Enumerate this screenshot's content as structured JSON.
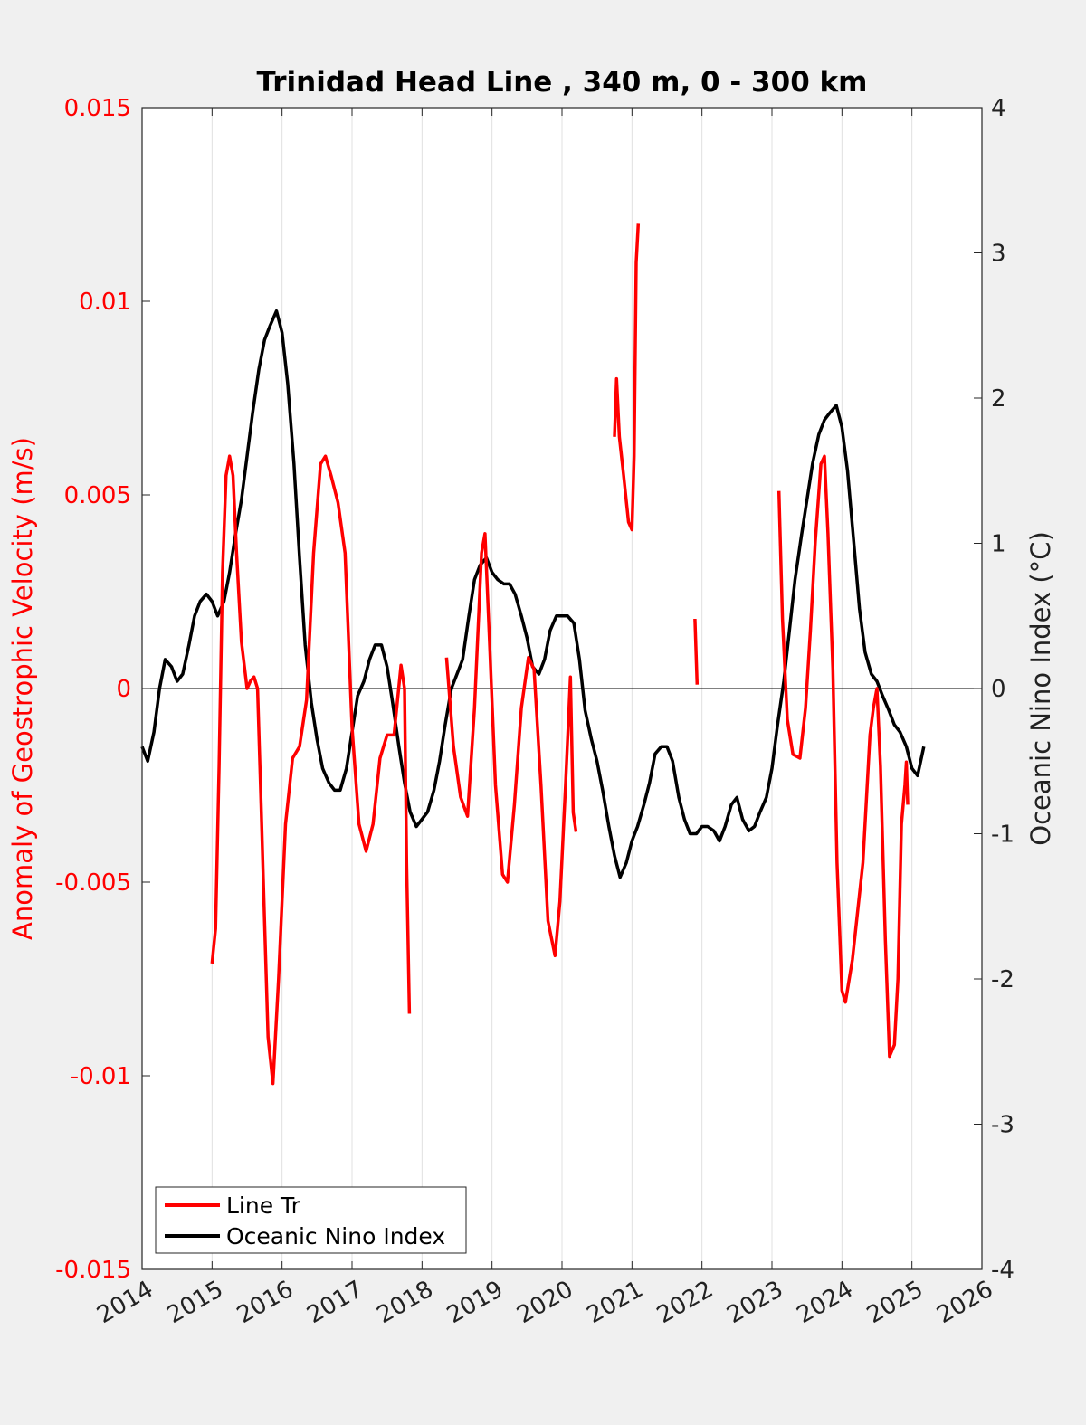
{
  "colors": {
    "red_series": "#ff0000",
    "black_series": "#000000",
    "background": "#f0f0f0",
    "plot_bg": "#ffffff",
    "grid": "#e0e0e0"
  },
  "chart_data": {
    "type": "line",
    "title": "Trinidad Head Line , 340 m, 0 - 300 km",
    "xlabel": "",
    "ylabel_left": "Anomaly of Geostrophic Velocity (m/s)",
    "ylabel_right": "Oceanic Nino Index (°C)",
    "xlim": [
      2014,
      2026
    ],
    "ylim_left": [
      -0.015,
      0.015
    ],
    "ylim_right": [
      -4,
      4
    ],
    "x_ticks": [
      "2014",
      "2015",
      "2016",
      "2017",
      "2018",
      "2019",
      "2020",
      "2021",
      "2022",
      "2023",
      "2024",
      "2025",
      "2026"
    ],
    "y_ticks_left": [
      "0.015",
      "0.01",
      "0.005",
      "0",
      "-0.005",
      "-0.01",
      "-0.015"
    ],
    "y_ticks_right": [
      "4",
      "3",
      "2",
      "1",
      "0",
      "-1",
      "-2",
      "-3",
      "-4"
    ],
    "grid": "vertical",
    "legend_position": "bottom-left",
    "series": [
      {
        "name": "Line Tr",
        "axis": "left",
        "color": "#ff0000",
        "segments": [
          [
            [
              2015.0,
              -0.0071
            ],
            [
              2015.05,
              -0.0062
            ],
            [
              2015.1,
              -0.002
            ],
            [
              2015.15,
              0.003
            ],
            [
              2015.2,
              0.0055
            ],
            [
              2015.25,
              0.006
            ],
            [
              2015.3,
              0.0055
            ],
            [
              2015.35,
              0.0035
            ],
            [
              2015.42,
              0.0012
            ],
            [
              2015.5,
              0.0
            ],
            [
              2015.55,
              0.0002
            ],
            [
              2015.6,
              0.0003
            ],
            [
              2015.65,
              0.0
            ],
            [
              2015.7,
              -0.003
            ],
            [
              2015.75,
              -0.006
            ],
            [
              2015.8,
              -0.009
            ],
            [
              2015.87,
              -0.0102
            ],
            [
              2015.95,
              -0.0075
            ],
            [
              2016.05,
              -0.0035
            ],
            [
              2016.15,
              -0.0018
            ],
            [
              2016.25,
              -0.0015
            ],
            [
              2016.35,
              -0.0003
            ],
            [
              2016.45,
              0.0035
            ],
            [
              2016.55,
              0.0058
            ],
            [
              2016.62,
              0.006
            ],
            [
              2016.7,
              0.0055
            ],
            [
              2016.8,
              0.0048
            ],
            [
              2016.9,
              0.0035
            ],
            [
              2017.0,
              -0.001
            ],
            [
              2017.1,
              -0.0035
            ],
            [
              2017.2,
              -0.0042
            ],
            [
              2017.3,
              -0.0035
            ],
            [
              2017.4,
              -0.0018
            ],
            [
              2017.5,
              -0.0012
            ],
            [
              2017.6,
              -0.0012
            ],
            [
              2017.7,
              0.0006
            ],
            [
              2017.75,
              -0.0
            ],
            [
              2017.78,
              -0.0045
            ],
            [
              2017.82,
              -0.0084
            ]
          ],
          [
            [
              2018.35,
              0.0008
            ],
            [
              2018.45,
              -0.0015
            ],
            [
              2018.55,
              -0.0028
            ],
            [
              2018.65,
              -0.0033
            ],
            [
              2018.75,
              -0.0005
            ],
            [
              2018.85,
              0.0035
            ],
            [
              2018.9,
              0.004
            ],
            [
              2018.97,
              0.001
            ],
            [
              2019.05,
              -0.0025
            ],
            [
              2019.15,
              -0.0048
            ],
            [
              2019.22,
              -0.005
            ],
            [
              2019.32,
              -0.003
            ],
            [
              2019.42,
              -0.0005
            ],
            [
              2019.52,
              0.0008
            ],
            [
              2019.6,
              0.0005
            ],
            [
              2019.7,
              -0.0025
            ],
            [
              2019.8,
              -0.006
            ],
            [
              2019.9,
              -0.0069
            ],
            [
              2019.97,
              -0.0055
            ],
            [
              2020.05,
              -0.0025
            ],
            [
              2020.12,
              0.0003
            ],
            [
              2020.16,
              -0.0032
            ],
            [
              2020.2,
              -0.0037
            ]
          ],
          [
            [
              2020.75,
              0.0065
            ],
            [
              2020.78,
              0.008
            ],
            [
              2020.82,
              0.0065
            ],
            [
              2020.88,
              0.0055
            ],
            [
              2020.95,
              0.0043
            ],
            [
              2021.0,
              0.0041
            ],
            [
              2021.03,
              0.006
            ],
            [
              2021.06,
              0.011
            ],
            [
              2021.09,
              0.012
            ]
          ],
          [
            [
              2021.9,
              0.0018
            ],
            [
              2021.93,
              0.0001
            ]
          ],
          [
            [
              2023.1,
              0.0051
            ],
            [
              2023.15,
              0.0018
            ],
            [
              2023.22,
              -0.0008
            ],
            [
              2023.3,
              -0.0017
            ],
            [
              2023.4,
              -0.0018
            ],
            [
              2023.48,
              -0.0005
            ],
            [
              2023.55,
              0.0015
            ],
            [
              2023.62,
              0.0038
            ],
            [
              2023.7,
              0.0058
            ],
            [
              2023.75,
              0.006
            ],
            [
              2023.8,
              0.004
            ],
            [
              2023.87,
              0.0005
            ],
            [
              2023.93,
              -0.0045
            ],
            [
              2024.0,
              -0.0078
            ],
            [
              2024.05,
              -0.0081
            ],
            [
              2024.15,
              -0.007
            ],
            [
              2024.3,
              -0.0045
            ],
            [
              2024.4,
              -0.0012
            ],
            [
              2024.45,
              -0.0005
            ],
            [
              2024.5,
              0.0
            ],
            [
              2024.55,
              -0.002
            ],
            [
              2024.62,
              -0.0065
            ],
            [
              2024.68,
              -0.0095
            ],
            [
              2024.75,
              -0.0092
            ],
            [
              2024.8,
              -0.0075
            ],
            [
              2024.85,
              -0.0035
            ],
            [
              2024.9,
              -0.0025
            ],
            [
              2024.92,
              -0.0019
            ],
            [
              2024.94,
              -0.003
            ]
          ]
        ]
      },
      {
        "name": "Oceanic Nino Index",
        "axis": "right",
        "color": "#000000",
        "points": [
          [
            2014.0,
            -0.4
          ],
          [
            2014.08,
            -0.5
          ],
          [
            2014.17,
            -0.3
          ],
          [
            2014.25,
            0.0
          ],
          [
            2014.33,
            0.2
          ],
          [
            2014.42,
            0.15
          ],
          [
            2014.5,
            0.05
          ],
          [
            2014.58,
            0.1
          ],
          [
            2014.67,
            0.3
          ],
          [
            2014.75,
            0.5
          ],
          [
            2014.83,
            0.6
          ],
          [
            2014.92,
            0.65
          ],
          [
            2015.0,
            0.6
          ],
          [
            2015.08,
            0.5
          ],
          [
            2015.17,
            0.6
          ],
          [
            2015.25,
            0.8
          ],
          [
            2015.33,
            1.05
          ],
          [
            2015.42,
            1.3
          ],
          [
            2015.5,
            1.6
          ],
          [
            2015.58,
            1.9
          ],
          [
            2015.67,
            2.2
          ],
          [
            2015.75,
            2.4
          ],
          [
            2015.83,
            2.5
          ],
          [
            2015.92,
            2.6
          ],
          [
            2016.0,
            2.45
          ],
          [
            2016.08,
            2.1
          ],
          [
            2016.17,
            1.55
          ],
          [
            2016.25,
            0.9
          ],
          [
            2016.33,
            0.3
          ],
          [
            2016.42,
            -0.1
          ],
          [
            2016.5,
            -0.35
          ],
          [
            2016.58,
            -0.55
          ],
          [
            2016.67,
            -0.65
          ],
          [
            2016.75,
            -0.7
          ],
          [
            2016.83,
            -0.7
          ],
          [
            2016.92,
            -0.55
          ],
          [
            2017.0,
            -0.3
          ],
          [
            2017.08,
            -0.05
          ],
          [
            2017.17,
            0.05
          ],
          [
            2017.25,
            0.2
          ],
          [
            2017.33,
            0.3
          ],
          [
            2017.42,
            0.3
          ],
          [
            2017.5,
            0.15
          ],
          [
            2017.58,
            -0.1
          ],
          [
            2017.67,
            -0.4
          ],
          [
            2017.75,
            -0.65
          ],
          [
            2017.83,
            -0.85
          ],
          [
            2017.92,
            -0.95
          ],
          [
            2018.0,
            -0.9
          ],
          [
            2018.08,
            -0.85
          ],
          [
            2018.17,
            -0.7
          ],
          [
            2018.25,
            -0.5
          ],
          [
            2018.33,
            -0.25
          ],
          [
            2018.42,
            0.0
          ],
          [
            2018.5,
            0.1
          ],
          [
            2018.58,
            0.2
          ],
          [
            2018.67,
            0.5
          ],
          [
            2018.75,
            0.75
          ],
          [
            2018.83,
            0.85
          ],
          [
            2018.92,
            0.9
          ],
          [
            2019.0,
            0.8
          ],
          [
            2019.08,
            0.75
          ],
          [
            2019.17,
            0.72
          ],
          [
            2019.25,
            0.72
          ],
          [
            2019.33,
            0.65
          ],
          [
            2019.42,
            0.5
          ],
          [
            2019.5,
            0.35
          ],
          [
            2019.58,
            0.15
          ],
          [
            2019.67,
            0.1
          ],
          [
            2019.75,
            0.2
          ],
          [
            2019.83,
            0.4
          ],
          [
            2019.92,
            0.5
          ],
          [
            2020.0,
            0.5
          ],
          [
            2020.08,
            0.5
          ],
          [
            2020.17,
            0.45
          ],
          [
            2020.25,
            0.2
          ],
          [
            2020.33,
            -0.15
          ],
          [
            2020.42,
            -0.35
          ],
          [
            2020.5,
            -0.5
          ],
          [
            2020.58,
            -0.7
          ],
          [
            2020.67,
            -0.95
          ],
          [
            2020.75,
            -1.15
          ],
          [
            2020.83,
            -1.3
          ],
          [
            2020.92,
            -1.2
          ],
          [
            2021.0,
            -1.05
          ],
          [
            2021.08,
            -0.95
          ],
          [
            2021.17,
            -0.8
          ],
          [
            2021.25,
            -0.65
          ],
          [
            2021.33,
            -0.45
          ],
          [
            2021.42,
            -0.4
          ],
          [
            2021.5,
            -0.4
          ],
          [
            2021.58,
            -0.5
          ],
          [
            2021.67,
            -0.75
          ],
          [
            2021.75,
            -0.9
          ],
          [
            2021.83,
            -1.0
          ],
          [
            2021.92,
            -1.0
          ],
          [
            2022.0,
            -0.95
          ],
          [
            2022.08,
            -0.95
          ],
          [
            2022.17,
            -0.98
          ],
          [
            2022.25,
            -1.05
          ],
          [
            2022.33,
            -0.95
          ],
          [
            2022.42,
            -0.8
          ],
          [
            2022.5,
            -0.75
          ],
          [
            2022.58,
            -0.9
          ],
          [
            2022.67,
            -0.98
          ],
          [
            2022.75,
            -0.95
          ],
          [
            2022.83,
            -0.85
          ],
          [
            2022.92,
            -0.75
          ],
          [
            2023.0,
            -0.55
          ],
          [
            2023.08,
            -0.25
          ],
          [
            2023.17,
            0.05
          ],
          [
            2023.25,
            0.4
          ],
          [
            2023.33,
            0.75
          ],
          [
            2023.42,
            1.05
          ],
          [
            2023.5,
            1.3
          ],
          [
            2023.58,
            1.55
          ],
          [
            2023.67,
            1.75
          ],
          [
            2023.75,
            1.85
          ],
          [
            2023.83,
            1.9
          ],
          [
            2023.92,
            1.95
          ],
          [
            2024.0,
            1.8
          ],
          [
            2024.08,
            1.5
          ],
          [
            2024.17,
            1.0
          ],
          [
            2024.25,
            0.55
          ],
          [
            2024.33,
            0.25
          ],
          [
            2024.42,
            0.1
          ],
          [
            2024.5,
            0.05
          ],
          [
            2024.58,
            -0.05
          ],
          [
            2024.67,
            -0.15
          ],
          [
            2024.75,
            -0.25
          ],
          [
            2024.83,
            -0.3
          ],
          [
            2024.92,
            -0.4
          ],
          [
            2025.0,
            -0.55
          ],
          [
            2025.08,
            -0.6
          ],
          [
            2025.17,
            -0.4
          ]
        ]
      }
    ]
  }
}
